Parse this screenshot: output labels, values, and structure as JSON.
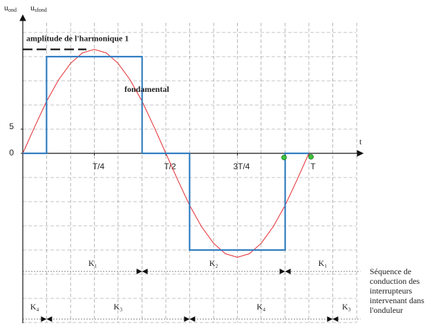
{
  "chart_data": {
    "type": "line",
    "y_axis_label": [
      {
        "symbol": "u",
        "subscript": "ond"
      },
      {
        "symbol": "u",
        "subscript": "sfond"
      }
    ],
    "x_axis_label": "t",
    "xlim": [
      0,
      1.18
    ],
    "xticks": [
      {
        "value": 0.25,
        "label": "T/4"
      },
      {
        "value": 0.5,
        "label": "T/2"
      },
      {
        "value": 0.75,
        "label": "3T/4"
      },
      {
        "value": 1,
        "label": "T"
      }
    ],
    "ylim": [
      -35,
      27
    ],
    "yticks": [
      0,
      5
    ],
    "xgrid": [
      0.083,
      0.167,
      0.25,
      0.333,
      0.417,
      0.5,
      0.583,
      0.667,
      0.75,
      0.833,
      0.917,
      1,
      1.083,
      1.167
    ],
    "ygrid": [
      -35,
      -30,
      -25,
      -20,
      -15,
      -10,
      -5,
      5,
      10,
      15,
      20,
      25
    ],
    "series": [
      {
        "name": "fondamental",
        "color": "#e3262b",
        "x": [
          0,
          0.042,
          0.083,
          0.125,
          0.167,
          0.208,
          0.25,
          0.292,
          0.333,
          0.375,
          0.417,
          0.458,
          0.5,
          0.542,
          0.583,
          0.625,
          0.667,
          0.708,
          0.75,
          0.792,
          0.833,
          0.875,
          0.917,
          0.958,
          1
        ],
        "values": [
          0,
          5.56,
          10.75,
          15.2,
          18.62,
          20.77,
          21.5,
          20.77,
          18.62,
          15.2,
          10.75,
          5.56,
          0,
          -5.56,
          -10.75,
          -15.2,
          -18.62,
          -20.77,
          -21.5,
          -20.77,
          -18.62,
          -15.2,
          -10.75,
          -5.56,
          0
        ]
      },
      {
        "color": "#2f7cc0",
        "x": [
          0,
          0.083,
          0.083,
          0.417,
          0.417,
          0.583,
          0.583,
          0.917,
          0.917,
          1
        ],
        "values": [
          0,
          0,
          20,
          20,
          0,
          0,
          -20,
          -20,
          0,
          0
        ]
      }
    ],
    "annotations": [
      {
        "text": "amplitude de l'harmonique 1",
        "value": 21.5,
        "color": "#e3262b"
      }
    ],
    "sequences": {
      "caption": [
        "Séquence de",
        "conduction des",
        "interrupteurs",
        "intervenant dans",
        "l'onduleur"
      ],
      "rows": [
        [
          {
            "label": "K₁",
            "start": 0,
            "end": 0.417
          },
          {
            "label": "K₂",
            "start": 0.417,
            "end": 0.917
          },
          {
            "label": "K₁",
            "start": 0.917,
            "end": 1.18
          }
        ],
        [
          {
            "label": "K₄",
            "start": 0,
            "end": 0.083
          },
          {
            "label": "K₃",
            "start": 0.083,
            "end": 0.583
          },
          {
            "label": "K₄",
            "start": 0.583,
            "end": 1.083
          },
          {
            "label": "K₃",
            "start": 1.083,
            "end": 1.18
          }
        ]
      ]
    }
  }
}
